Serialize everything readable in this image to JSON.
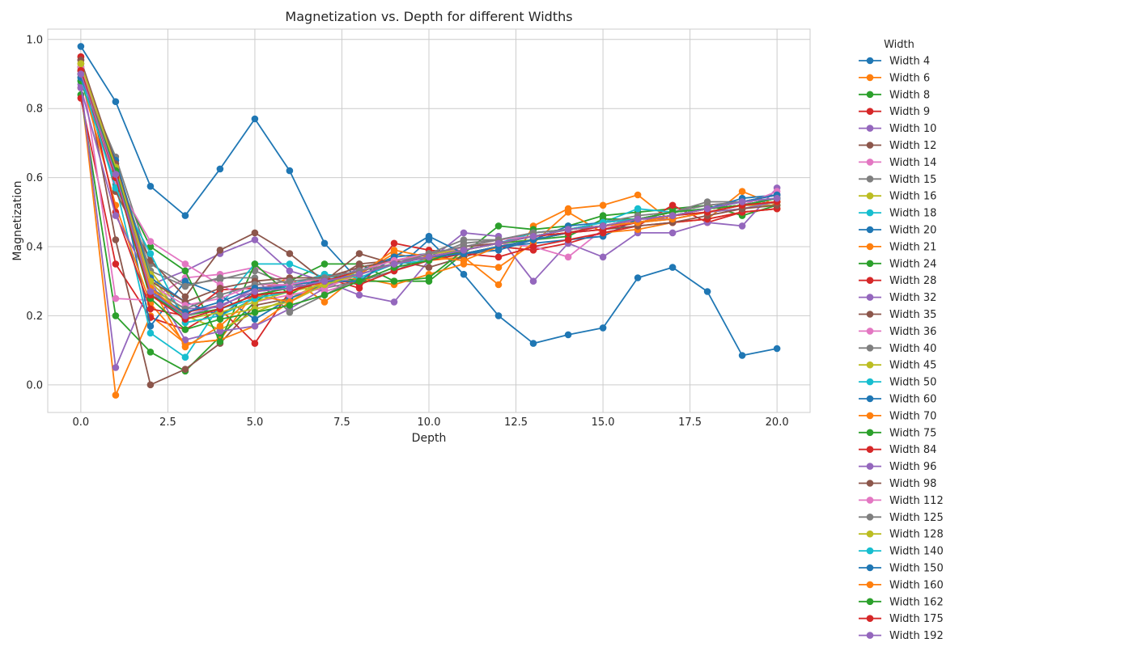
{
  "chart_data": {
    "type": "line",
    "title": "Magnetization vs. Depth for different Widths",
    "xlabel": "Depth",
    "ylabel": "Magnetization",
    "xlim": [
      -0.95,
      20.95
    ],
    "ylim": [
      -0.08,
      1.03
    ],
    "xticks": [
      0.0,
      2.5,
      5.0,
      7.5,
      10.0,
      12.5,
      15.0,
      17.5,
      20.0
    ],
    "xtick_labels": [
      "0.0",
      "2.5",
      "5.0",
      "7.5",
      "10.0",
      "12.5",
      "15.0",
      "17.5",
      "20.0"
    ],
    "yticks": [
      0.0,
      0.2,
      0.4,
      0.6,
      0.8,
      1.0
    ],
    "ytick_labels": [
      "0.0",
      "0.2",
      "0.4",
      "0.6",
      "0.8",
      "1.0"
    ],
    "grid": true,
    "legend_title": "Width",
    "legend_position": "outside right",
    "x": [
      0,
      1,
      2,
      3,
      4,
      5,
      6,
      7,
      8,
      9,
      10,
      11,
      12,
      13,
      14,
      15,
      16,
      17,
      18,
      19,
      20
    ],
    "series": [
      {
        "name": "Width 4",
        "color": "#1f77b4",
        "values": [
          0.98,
          0.82,
          0.575,
          0.49,
          0.625,
          0.77,
          0.62,
          0.41,
          0.3,
          0.33,
          0.42,
          0.32,
          0.2,
          0.12,
          0.145,
          0.165,
          0.31,
          0.34,
          0.27,
          0.085,
          0.105
        ]
      },
      {
        "name": "Width 6",
        "color": "#ff7f0e",
        "values": [
          0.86,
          -0.03,
          0.2,
          0.12,
          0.13,
          0.27,
          0.31,
          0.24,
          0.32,
          0.38,
          0.36,
          0.37,
          0.29,
          0.46,
          0.51,
          0.52,
          0.55,
          0.47,
          0.48,
          0.56,
          0.52
        ]
      },
      {
        "name": "Width 8",
        "color": "#2ca02c",
        "values": [
          0.84,
          0.2,
          0.095,
          0.04,
          0.14,
          0.24,
          0.3,
          0.35,
          0.35,
          0.3,
          0.3,
          0.38,
          0.46,
          0.45,
          0.46,
          0.49,
          0.5,
          0.51,
          0.52,
          0.49,
          0.52
        ]
      },
      {
        "name": "Width 9",
        "color": "#d62728",
        "values": [
          0.83,
          0.35,
          0.195,
          0.16,
          0.22,
          0.12,
          0.27,
          0.31,
          0.28,
          0.41,
          0.39,
          0.38,
          0.4,
          0.39,
          0.41,
          0.44,
          0.46,
          0.52,
          0.47,
          0.5,
          0.51
        ]
      },
      {
        "name": "Width 10",
        "color": "#9467bd",
        "values": [
          0.87,
          0.05,
          0.29,
          0.33,
          0.38,
          0.42,
          0.33,
          0.3,
          0.26,
          0.24,
          0.36,
          0.44,
          0.43,
          0.3,
          0.41,
          0.37,
          0.44,
          0.44,
          0.47,
          0.46,
          0.57
        ]
      },
      {
        "name": "Width 12",
        "color": "#8c564b",
        "values": [
          0.95,
          0.42,
          0.0,
          0.045,
          0.12,
          0.23,
          0.25,
          0.29,
          0.35,
          0.36,
          0.34,
          0.37,
          0.4,
          0.42,
          0.44,
          0.46,
          0.47,
          0.48,
          0.5,
          0.51,
          0.53
        ]
      },
      {
        "name": "Width 14",
        "color": "#e377c2",
        "values": [
          0.93,
          0.25,
          0.245,
          0.31,
          0.32,
          0.34,
          0.3,
          0.27,
          0.3,
          0.34,
          0.36,
          0.4,
          0.41,
          0.4,
          0.37,
          0.45,
          0.48,
          0.49,
          0.51,
          0.52,
          0.54
        ]
      },
      {
        "name": "Width 15",
        "color": "#7f7f7f",
        "values": [
          0.9,
          0.66,
          0.35,
          0.29,
          0.305,
          0.33,
          0.29,
          0.28,
          0.3,
          0.33,
          0.37,
          0.41,
          0.42,
          0.43,
          0.45,
          0.46,
          0.48,
          0.5,
          0.53,
          0.53,
          0.54
        ]
      },
      {
        "name": "Width 16",
        "color": "#bcbd22",
        "values": [
          0.93,
          0.63,
          0.33,
          0.2,
          0.16,
          0.21,
          0.25,
          0.3,
          0.33,
          0.36,
          0.37,
          0.39,
          0.41,
          0.43,
          0.45,
          0.46,
          0.47,
          0.49,
          0.51,
          0.52,
          0.52
        ]
      },
      {
        "name": "Width 18",
        "color": "#17becf",
        "values": [
          0.88,
          0.58,
          0.15,
          0.08,
          0.23,
          0.35,
          0.35,
          0.31,
          0.32,
          0.35,
          0.36,
          0.39,
          0.41,
          0.44,
          0.45,
          0.47,
          0.51,
          0.5,
          0.51,
          0.52,
          0.53
        ]
      },
      {
        "name": "Width 20",
        "color": "#1f77b4",
        "values": [
          0.89,
          0.65,
          0.17,
          0.3,
          0.26,
          0.19,
          0.25,
          0.29,
          0.33,
          0.37,
          0.38,
          0.38,
          0.4,
          0.41,
          0.42,
          0.43,
          0.48,
          0.49,
          0.51,
          0.54,
          0.55
        ]
      },
      {
        "name": "Width 21",
        "color": "#ff7f0e",
        "values": [
          0.89,
          0.52,
          0.235,
          0.12,
          0.13,
          0.17,
          0.24,
          0.29,
          0.31,
          0.29,
          0.32,
          0.35,
          0.34,
          0.41,
          0.5,
          0.44,
          0.45,
          0.47,
          0.48,
          0.5,
          0.51
        ]
      },
      {
        "name": "Width 24",
        "color": "#2ca02c",
        "values": [
          0.88,
          0.6,
          0.4,
          0.33,
          0.125,
          0.35,
          0.26,
          0.32,
          0.3,
          0.3,
          0.31,
          0.39,
          0.41,
          0.42,
          0.43,
          0.48,
          0.48,
          0.5,
          0.51,
          0.52,
          0.54
        ]
      },
      {
        "name": "Width 28",
        "color": "#d62728",
        "values": [
          0.95,
          0.5,
          0.22,
          0.2,
          0.275,
          0.28,
          0.29,
          0.31,
          0.29,
          0.33,
          0.36,
          0.38,
          0.37,
          0.4,
          0.42,
          0.44,
          0.46,
          0.47,
          0.48,
          0.5,
          0.51
        ]
      },
      {
        "name": "Width 32",
        "color": "#9467bd",
        "values": [
          0.86,
          0.49,
          0.3,
          0.13,
          0.155,
          0.17,
          0.22,
          0.28,
          0.34,
          0.36,
          0.37,
          0.4,
          0.42,
          0.44,
          0.45,
          0.47,
          0.48,
          0.48,
          0.5,
          0.51,
          0.53
        ]
      },
      {
        "name": "Width 35",
        "color": "#8c564b",
        "values": [
          0.94,
          0.56,
          0.36,
          0.255,
          0.39,
          0.44,
          0.38,
          0.3,
          0.38,
          0.35,
          0.37,
          0.38,
          0.4,
          0.42,
          0.44,
          0.45,
          0.46,
          0.47,
          0.49,
          0.51,
          0.52
        ]
      },
      {
        "name": "Width 36",
        "color": "#e377c2",
        "values": [
          0.91,
          0.59,
          0.415,
          0.35,
          0.29,
          0.24,
          0.26,
          0.28,
          0.32,
          0.35,
          0.37,
          0.4,
          0.41,
          0.43,
          0.44,
          0.46,
          0.47,
          0.49,
          0.5,
          0.52,
          0.56
        ]
      },
      {
        "name": "Width 40",
        "color": "#7f7f7f",
        "values": [
          0.91,
          0.64,
          0.33,
          0.285,
          0.31,
          0.31,
          0.21,
          0.26,
          0.31,
          0.35,
          0.38,
          0.42,
          0.42,
          0.44,
          0.45,
          0.46,
          0.48,
          0.49,
          0.51,
          0.53,
          0.55
        ]
      },
      {
        "name": "Width 45",
        "color": "#bcbd22",
        "values": [
          0.93,
          0.61,
          0.32,
          0.18,
          0.2,
          0.22,
          0.24,
          0.29,
          0.33,
          0.36,
          0.38,
          0.39,
          0.41,
          0.43,
          0.45,
          0.46,
          0.48,
          0.49,
          0.5,
          0.52,
          0.53
        ]
      },
      {
        "name": "Width 50",
        "color": "#17becf",
        "values": [
          0.89,
          0.57,
          0.38,
          0.18,
          0.2,
          0.25,
          0.29,
          0.32,
          0.31,
          0.35,
          0.37,
          0.39,
          0.41,
          0.44,
          0.45,
          0.47,
          0.48,
          0.5,
          0.51,
          0.52,
          0.53
        ]
      },
      {
        "name": "Width 60",
        "color": "#1f77b4",
        "values": [
          0.89,
          0.65,
          0.31,
          0.24,
          0.2,
          0.27,
          0.29,
          0.3,
          0.3,
          0.37,
          0.43,
          0.38,
          0.39,
          0.42,
          0.46,
          0.47,
          0.48,
          0.49,
          0.51,
          0.53,
          0.55
        ]
      },
      {
        "name": "Width 70",
        "color": "#ff7f0e",
        "values": [
          0.92,
          0.62,
          0.29,
          0.11,
          0.17,
          0.26,
          0.24,
          0.3,
          0.32,
          0.39,
          0.37,
          0.36,
          0.4,
          0.42,
          0.44,
          0.46,
          0.47,
          0.48,
          0.5,
          0.52,
          0.53
        ]
      },
      {
        "name": "Width 75",
        "color": "#2ca02c",
        "values": [
          0.92,
          0.6,
          0.25,
          0.16,
          0.19,
          0.21,
          0.23,
          0.26,
          0.3,
          0.34,
          0.36,
          0.39,
          0.41,
          0.43,
          0.45,
          0.46,
          0.47,
          0.49,
          0.51,
          0.52,
          0.54
        ]
      },
      {
        "name": "Width 84",
        "color": "#d62728",
        "values": [
          0.9,
          0.63,
          0.26,
          0.21,
          0.23,
          0.27,
          0.28,
          0.3,
          0.33,
          0.35,
          0.37,
          0.39,
          0.41,
          0.43,
          0.44,
          0.45,
          0.47,
          0.49,
          0.51,
          0.52,
          0.53
        ]
      },
      {
        "name": "Width 96",
        "color": "#9467bd",
        "values": [
          0.9,
          0.62,
          0.28,
          0.22,
          0.225,
          0.28,
          0.29,
          0.31,
          0.33,
          0.35,
          0.37,
          0.39,
          0.41,
          0.43,
          0.45,
          0.46,
          0.47,
          0.49,
          0.51,
          0.53,
          0.55
        ]
      },
      {
        "name": "Width 98",
        "color": "#8c564b",
        "values": [
          0.94,
          0.64,
          0.3,
          0.24,
          0.28,
          0.3,
          0.31,
          0.31,
          0.34,
          0.36,
          0.38,
          0.4,
          0.41,
          0.43,
          0.45,
          0.46,
          0.48,
          0.5,
          0.51,
          0.52,
          0.54
        ]
      },
      {
        "name": "Width 112",
        "color": "#e377c2",
        "values": [
          0.92,
          0.63,
          0.29,
          0.23,
          0.25,
          0.29,
          0.29,
          0.31,
          0.33,
          0.36,
          0.38,
          0.4,
          0.42,
          0.43,
          0.45,
          0.47,
          0.48,
          0.5,
          0.52,
          0.53,
          0.55
        ]
      },
      {
        "name": "Width 125",
        "color": "#7f7f7f",
        "values": [
          0.91,
          0.62,
          0.28,
          0.22,
          0.26,
          0.29,
          0.3,
          0.31,
          0.33,
          0.35,
          0.38,
          0.4,
          0.42,
          0.44,
          0.45,
          0.47,
          0.49,
          0.5,
          0.52,
          0.53,
          0.54
        ]
      },
      {
        "name": "Width 128",
        "color": "#bcbd22",
        "values": [
          0.93,
          0.63,
          0.3,
          0.19,
          0.21,
          0.24,
          0.27,
          0.29,
          0.32,
          0.35,
          0.37,
          0.39,
          0.41,
          0.43,
          0.45,
          0.46,
          0.48,
          0.5,
          0.51,
          0.52,
          0.53
        ]
      },
      {
        "name": "Width 140",
        "color": "#17becf",
        "values": [
          0.91,
          0.61,
          0.27,
          0.19,
          0.22,
          0.25,
          0.27,
          0.3,
          0.32,
          0.35,
          0.37,
          0.39,
          0.41,
          0.43,
          0.45,
          0.47,
          0.48,
          0.5,
          0.51,
          0.52,
          0.54
        ]
      },
      {
        "name": "Width 150",
        "color": "#1f77b4",
        "values": [
          0.9,
          0.62,
          0.27,
          0.21,
          0.24,
          0.28,
          0.28,
          0.3,
          0.32,
          0.35,
          0.37,
          0.38,
          0.4,
          0.42,
          0.44,
          0.46,
          0.48,
          0.49,
          0.51,
          0.53,
          0.55
        ]
      },
      {
        "name": "Width 160",
        "color": "#ff7f0e",
        "values": [
          0.91,
          0.61,
          0.28,
          0.2,
          0.22,
          0.26,
          0.27,
          0.3,
          0.32,
          0.35,
          0.37,
          0.39,
          0.41,
          0.43,
          0.45,
          0.46,
          0.47,
          0.49,
          0.51,
          0.52,
          0.53
        ]
      },
      {
        "name": "Width 162",
        "color": "#2ca02c",
        "values": [
          0.9,
          0.62,
          0.26,
          0.2,
          0.22,
          0.26,
          0.28,
          0.3,
          0.32,
          0.35,
          0.37,
          0.39,
          0.41,
          0.43,
          0.45,
          0.46,
          0.48,
          0.5,
          0.51,
          0.52,
          0.54
        ]
      },
      {
        "name": "Width 175",
        "color": "#d62728",
        "values": [
          0.91,
          0.6,
          0.26,
          0.19,
          0.22,
          0.26,
          0.27,
          0.3,
          0.32,
          0.35,
          0.37,
          0.39,
          0.41,
          0.43,
          0.44,
          0.46,
          0.48,
          0.49,
          0.5,
          0.52,
          0.53
        ]
      },
      {
        "name": "Width 192",
        "color": "#9467bd",
        "values": [
          0.9,
          0.61,
          0.27,
          0.2,
          0.23,
          0.27,
          0.28,
          0.3,
          0.32,
          0.35,
          0.37,
          0.39,
          0.41,
          0.43,
          0.45,
          0.46,
          0.48,
          0.49,
          0.51,
          0.53,
          0.54
        ]
      }
    ]
  }
}
